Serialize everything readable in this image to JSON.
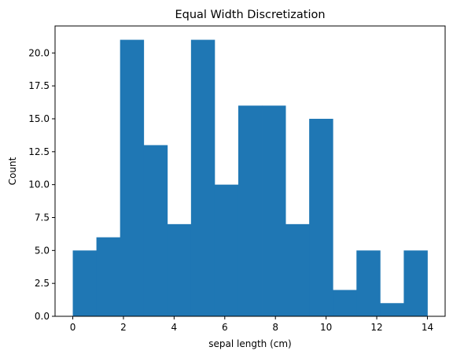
{
  "chart_data": {
    "type": "bar",
    "title": "Equal Width Discretization",
    "xlabel": "sepal length (cm)",
    "ylabel": "Count",
    "bin_edges": [
      0,
      0.933,
      1.867,
      2.8,
      3.733,
      4.667,
      5.6,
      6.533,
      7.467,
      8.4,
      9.333,
      10.267,
      11.2,
      12.133,
      13.067,
      14.0
    ],
    "values": [
      5,
      6,
      21,
      13,
      7,
      21,
      10,
      16,
      16,
      7,
      15,
      2,
      5,
      1,
      5
    ],
    "xlim": [
      -0.7,
      14.7
    ],
    "ylim": [
      0,
      22.05
    ],
    "x_ticks": [
      0,
      2,
      4,
      6,
      8,
      10,
      12,
      14
    ],
    "x_tick_labels": [
      "0",
      "2",
      "4",
      "6",
      "8",
      "10",
      "12",
      "14"
    ],
    "y_ticks": [
      0,
      2.5,
      5,
      7.5,
      10,
      12.5,
      15,
      17.5,
      20
    ],
    "y_tick_labels": [
      "0.0",
      "2.5",
      "5.0",
      "7.5",
      "10.0",
      "12.5",
      "15.0",
      "17.5",
      "20.0"
    ],
    "bar_color": "#1f77b4",
    "grid": false,
    "legend": "none"
  }
}
